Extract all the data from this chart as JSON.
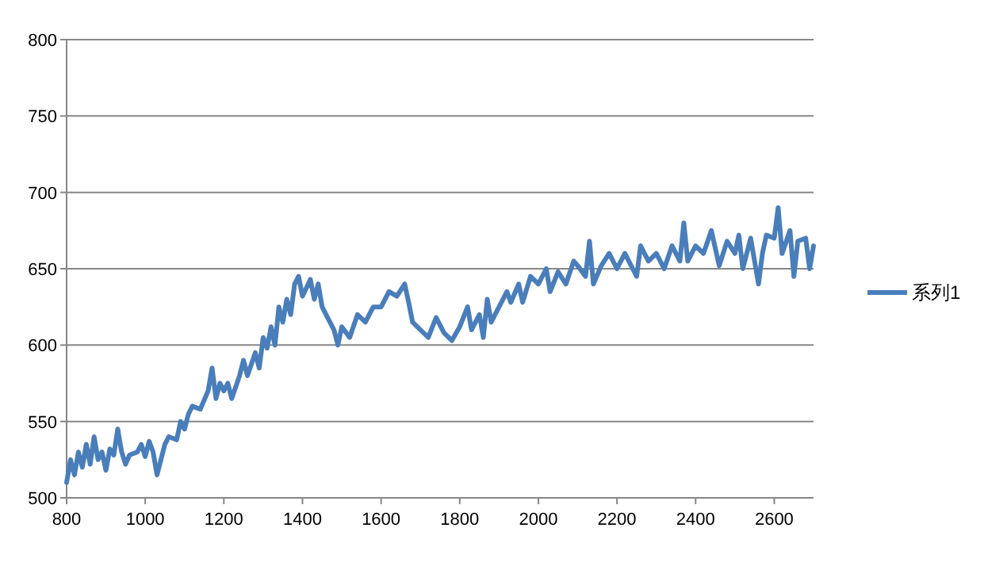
{
  "chart_data": {
    "type": "line",
    "xlim": [
      800,
      2700
    ],
    "xticks": [
      800,
      1000,
      1200,
      1400,
      1600,
      1800,
      2000,
      2200,
      2400,
      2600
    ],
    "ylim": [
      500,
      800
    ],
    "yticks": [
      500,
      550,
      600,
      650,
      700,
      750,
      800
    ],
    "grid": "y",
    "legend": "right",
    "marker": "none",
    "line_style": "solid",
    "series": [
      {
        "name": "系列1",
        "color": "#4a7ebb",
        "x": [
          800,
          810,
          820,
          830,
          840,
          850,
          860,
          870,
          880,
          890,
          900,
          910,
          920,
          930,
          940,
          950,
          960,
          980,
          990,
          1000,
          1010,
          1020,
          1030,
          1040,
          1050,
          1060,
          1080,
          1090,
          1100,
          1110,
          1120,
          1140,
          1160,
          1170,
          1180,
          1190,
          1200,
          1210,
          1220,
          1240,
          1250,
          1260,
          1280,
          1290,
          1300,
          1310,
          1320,
          1330,
          1340,
          1350,
          1360,
          1370,
          1380,
          1390,
          1400,
          1420,
          1430,
          1440,
          1450,
          1460,
          1480,
          1490,
          1500,
          1520,
          1540,
          1560,
          1580,
          1600,
          1620,
          1640,
          1660,
          1670,
          1680,
          1700,
          1720,
          1740,
          1760,
          1780,
          1800,
          1820,
          1830,
          1850,
          1860,
          1870,
          1880,
          1900,
          1920,
          1930,
          1950,
          1960,
          1980,
          2000,
          2020,
          2030,
          2050,
          2070,
          2090,
          2100,
          2120,
          2130,
          2140,
          2160,
          2180,
          2200,
          2220,
          2240,
          2250,
          2260,
          2280,
          2300,
          2320,
          2340,
          2360,
          2370,
          2380,
          2400,
          2420,
          2440,
          2460,
          2480,
          2500,
          2510,
          2520,
          2540,
          2560,
          2570,
          2580,
          2600,
          2610,
          2620,
          2640,
          2650,
          2660,
          2680,
          2690,
          2700
        ],
        "values": [
          510,
          525,
          515,
          530,
          520,
          535,
          522,
          540,
          525,
          530,
          518,
          532,
          528,
          545,
          530,
          522,
          528,
          530,
          535,
          527,
          537,
          530,
          515,
          525,
          535,
          540,
          538,
          550,
          545,
          555,
          560,
          558,
          570,
          585,
          565,
          575,
          570,
          575,
          565,
          580,
          590,
          580,
          595,
          585,
          605,
          598,
          612,
          600,
          625,
          615,
          630,
          620,
          640,
          645,
          632,
          643,
          630,
          640,
          625,
          620,
          610,
          600,
          612,
          605,
          620,
          615,
          625,
          625,
          635,
          632,
          640,
          628,
          615,
          610,
          605,
          618,
          608,
          603,
          612,
          625,
          610,
          620,
          605,
          630,
          615,
          625,
          635,
          628,
          640,
          628,
          645,
          640,
          650,
          635,
          648,
          640,
          655,
          652,
          645,
          668,
          640,
          652,
          660,
          650,
          660,
          650,
          645,
          665,
          655,
          660,
          650,
          665,
          655,
          680,
          655,
          665,
          660,
          675,
          652,
          668,
          660,
          672,
          650,
          670,
          640,
          660,
          672,
          670,
          690,
          660,
          675,
          645,
          668,
          670,
          650,
          665
        ]
      }
    ]
  }
}
